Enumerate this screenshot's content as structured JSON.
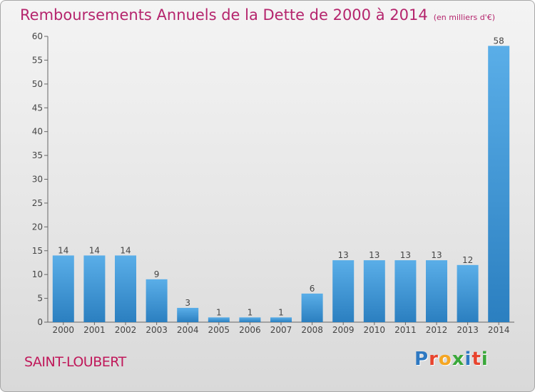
{
  "title": "Remboursements Annuels de la Dette de 2000 à 2014",
  "unit_note": "(en milliers d'€)",
  "commune": "SAINT-LOUBERT",
  "logo": {
    "text": "Proxiti",
    "letters": [
      "P",
      "r",
      "o",
      "x",
      "i",
      "t",
      "i"
    ],
    "colors": [
      "#2e79c2",
      "#e8442e",
      "#f5a623",
      "#3aa83a",
      "#2e79c2",
      "#e8442e",
      "#3aa83a"
    ]
  },
  "colors": {
    "bar_light": "#5aaee8",
    "bar_dark": "#2b7fc0",
    "title": "#b5256d",
    "axis": "#555555"
  },
  "chart_data": {
    "type": "bar",
    "categories": [
      "2000",
      "2001",
      "2002",
      "2003",
      "2004",
      "2005",
      "2006",
      "2007",
      "2008",
      "2009",
      "2010",
      "2011",
      "2012",
      "2013",
      "2014"
    ],
    "values": [
      14,
      14,
      14,
      9,
      3,
      1,
      1,
      1,
      6,
      13,
      13,
      13,
      13,
      12,
      58
    ],
    "ylim": [
      0,
      60
    ],
    "yticks": [
      0,
      5,
      10,
      15,
      20,
      25,
      30,
      35,
      40,
      45,
      50,
      55,
      60
    ],
    "grid": false,
    "legend": "none"
  }
}
